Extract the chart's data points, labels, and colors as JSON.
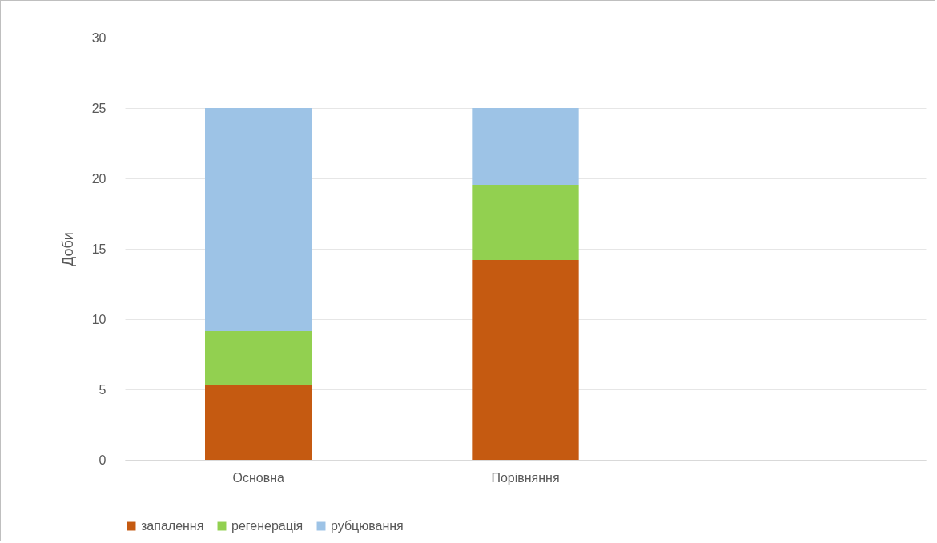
{
  "chart_data": {
    "type": "bar",
    "stacked": true,
    "ylabel": "Доби",
    "categories": [
      "Основна",
      "Порівняння",
      null
    ],
    "series": [
      {
        "name": "запалення",
        "color": "#c55a11",
        "values": [
          5.3,
          14.2,
          null
        ]
      },
      {
        "name": "регенерація",
        "color": "#92d050",
        "values": [
          3.85,
          5.35,
          null
        ]
      },
      {
        "name": "рубцювання",
        "color": "#9dc3e6",
        "values": [
          15.85,
          5.45,
          null
        ]
      }
    ],
    "ylim": [
      0,
      30
    ],
    "yticks": [
      0,
      5,
      10,
      15,
      20,
      25,
      30
    ],
    "grid": "y",
    "legend": "bottom"
  }
}
